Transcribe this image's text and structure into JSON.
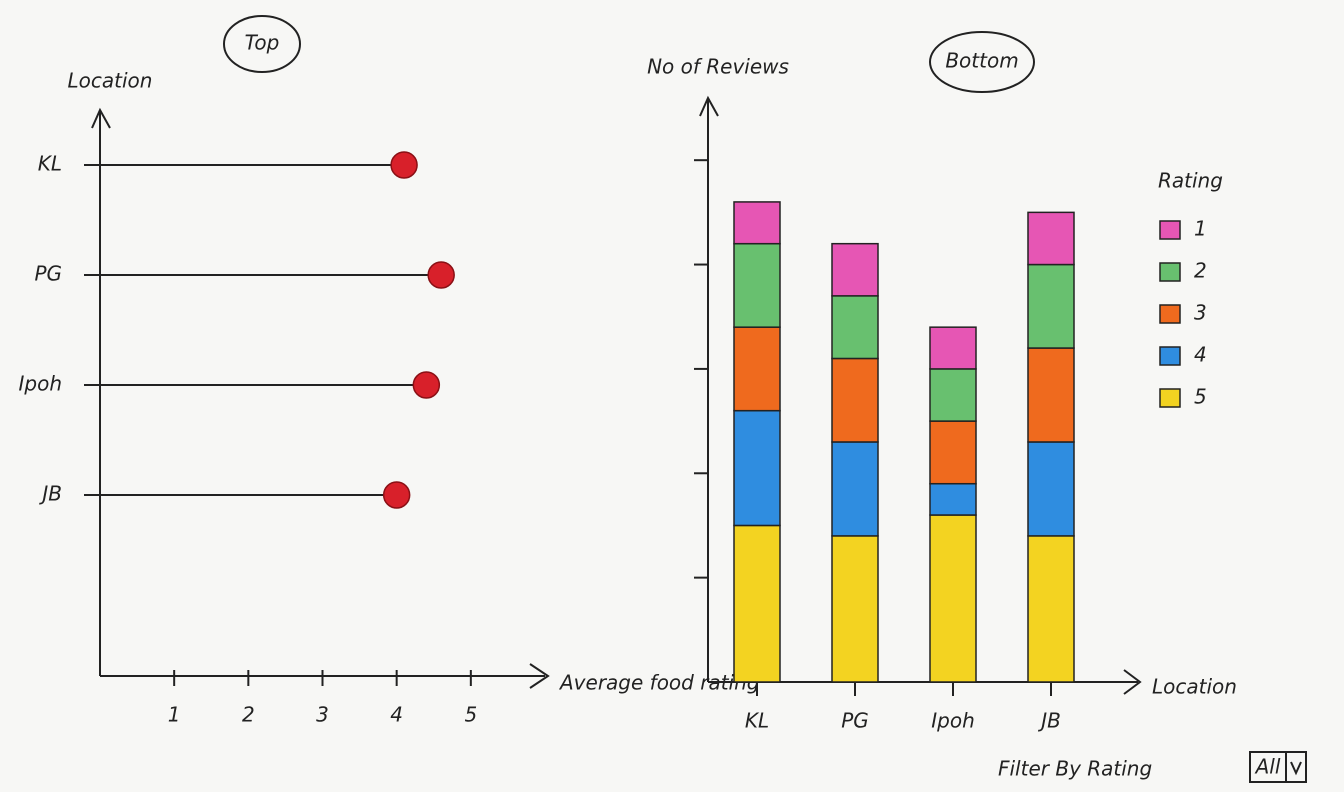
{
  "chart_data": [
    {
      "type": "lollipop",
      "title": "Top",
      "x_label": "Average food rating",
      "y_label": "Location",
      "categories": [
        "KL",
        "PG",
        "Ipoh",
        "JB"
      ],
      "values": [
        4.1,
        4.6,
        4.4,
        4.0
      ],
      "color": "#d8202a",
      "xlim": [
        0,
        6
      ],
      "xticks": [
        1,
        2,
        3,
        4,
        5
      ]
    },
    {
      "type": "stacked_bar",
      "title": "Bottom",
      "x_label": "Location",
      "y_label": "No of Reviews",
      "legend_title": "Rating",
      "legend": "right",
      "categories": [
        "KL",
        "PG",
        "Ipoh",
        "JB"
      ],
      "series": [
        {
          "name": "5",
          "color": "#f3d321",
          "values": [
            1.5,
            1.4,
            1.6,
            1.4
          ]
        },
        {
          "name": "4",
          "color": "#2f8de0",
          "values": [
            1.1,
            0.9,
            0.3,
            0.9
          ]
        },
        {
          "name": "3",
          "color": "#ef6a1e",
          "values": [
            0.8,
            0.8,
            0.6,
            0.9
          ]
        },
        {
          "name": "2",
          "color": "#68c06f",
          "values": [
            0.8,
            0.6,
            0.5,
            0.8
          ]
        },
        {
          "name": "1",
          "color": "#e656b4",
          "values": [
            0.4,
            0.5,
            0.4,
            0.5
          ]
        }
      ],
      "ylim": [
        0,
        5.5
      ],
      "yticks": [
        1,
        2,
        3,
        4,
        5
      ]
    }
  ],
  "filter": {
    "label": "Filter By Rating",
    "value": "All"
  }
}
